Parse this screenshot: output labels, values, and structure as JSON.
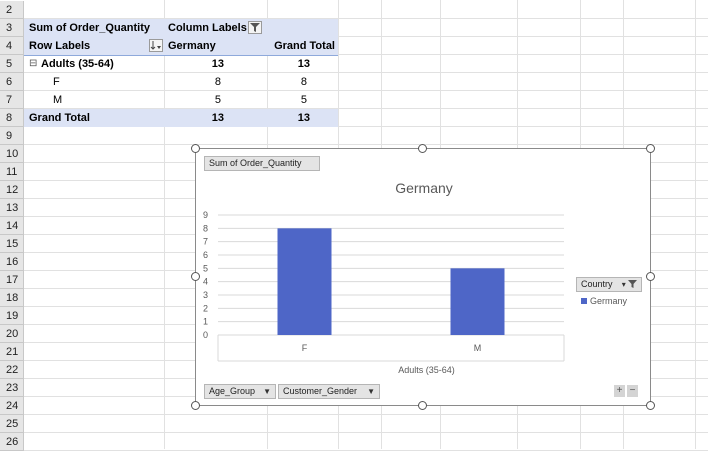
{
  "sheet": {
    "row_numbers": [
      "2",
      "3",
      "4",
      "5",
      "6",
      "7",
      "8",
      "9",
      "10",
      "11",
      "12",
      "13",
      "14",
      "15",
      "16",
      "17",
      "18",
      "19",
      "20",
      "21",
      "22",
      "23",
      "24",
      "25",
      "26"
    ]
  },
  "pivot": {
    "value_field": "Sum of Order_Quantity",
    "column_labels": "Column Labels",
    "row_labels": "Row Labels",
    "col_header": "Germany",
    "grand_total_header": "Grand Total",
    "group": {
      "toggle": "⊟",
      "label": "Adults (35-64)",
      "germany": "13",
      "total": "13"
    },
    "rows": [
      {
        "label": "F",
        "germany": "8",
        "total": "8"
      },
      {
        "label": "M",
        "germany": "5",
        "total": "5"
      }
    ],
    "grand_total": {
      "label": "Grand Total",
      "germany": "13",
      "total": "13"
    }
  },
  "chart": {
    "value_button": "Sum of Order_Quantity",
    "legend_button": "Country",
    "legend_entry": "Germany",
    "axis_buttons": [
      "Age_Group",
      "Customer_Gender"
    ],
    "zoom_in": "+",
    "zoom_out": "−",
    "bar_color": "#4e66c7"
  },
  "chart_data": {
    "type": "bar",
    "title": "Germany",
    "categories": [
      "F",
      "M"
    ],
    "category_group": "Adults (35-64)",
    "series": [
      {
        "name": "Germany",
        "values": [
          8,
          5
        ]
      }
    ],
    "y_ticks": [
      "0",
      "1",
      "2",
      "3",
      "4",
      "5",
      "6",
      "7",
      "8",
      "9"
    ],
    "ylim": [
      0,
      9
    ],
    "grid": true,
    "legend": "right"
  }
}
